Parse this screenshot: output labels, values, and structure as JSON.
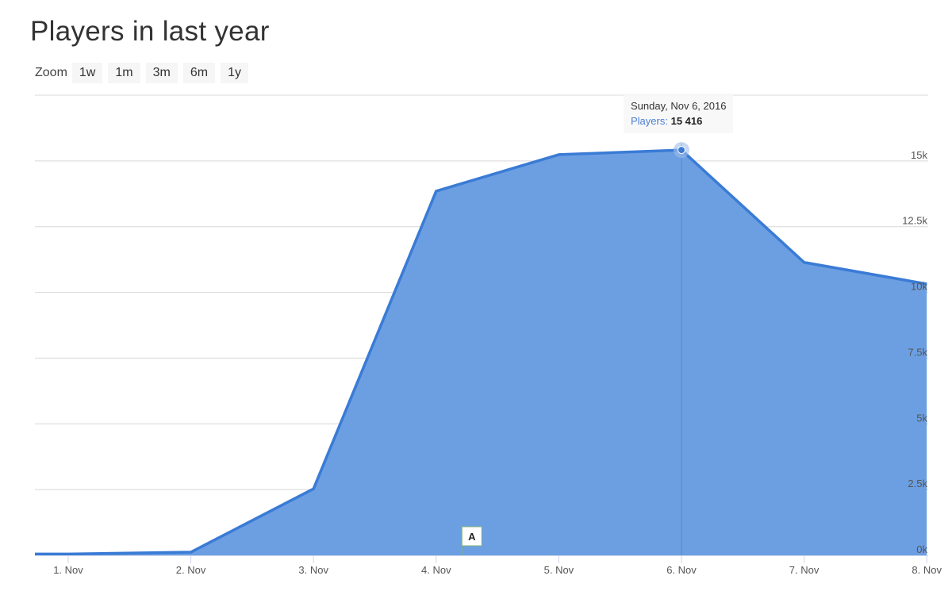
{
  "title": "Players in last year",
  "zoom": {
    "label": "Zoom",
    "buttons": [
      "1w",
      "1m",
      "3m",
      "6m",
      "1y"
    ]
  },
  "tooltip": {
    "date": "Sunday, Nov 6, 2016",
    "series": "Players",
    "value": "15 416"
  },
  "flag": {
    "label": "A",
    "x": 4.21
  },
  "colors": {
    "area": "#6c9fe2",
    "line": "#3a7bd5",
    "grid": "#d8d8d8"
  },
  "chart_data": {
    "type": "area",
    "title": "Players in last year",
    "x": [
      "1. Nov",
      "2. Nov",
      "3. Nov",
      "4. Nov",
      "5. Nov",
      "6. Nov",
      "7. Nov",
      "8. Nov"
    ],
    "series": [
      {
        "name": "Players",
        "values": [
          50,
          120,
          2530,
          13850,
          15240,
          15416,
          11140,
          10320
        ]
      }
    ],
    "ylim": [
      0,
      17500
    ],
    "yticks": [
      "0k",
      "2.5k",
      "5k",
      "7.5k",
      "10k",
      "12.5k",
      "15k"
    ],
    "ytick_values": [
      0,
      2500,
      5000,
      7500,
      10000,
      12500,
      15000
    ],
    "grid": true,
    "highlighted_point": "6. Nov"
  }
}
